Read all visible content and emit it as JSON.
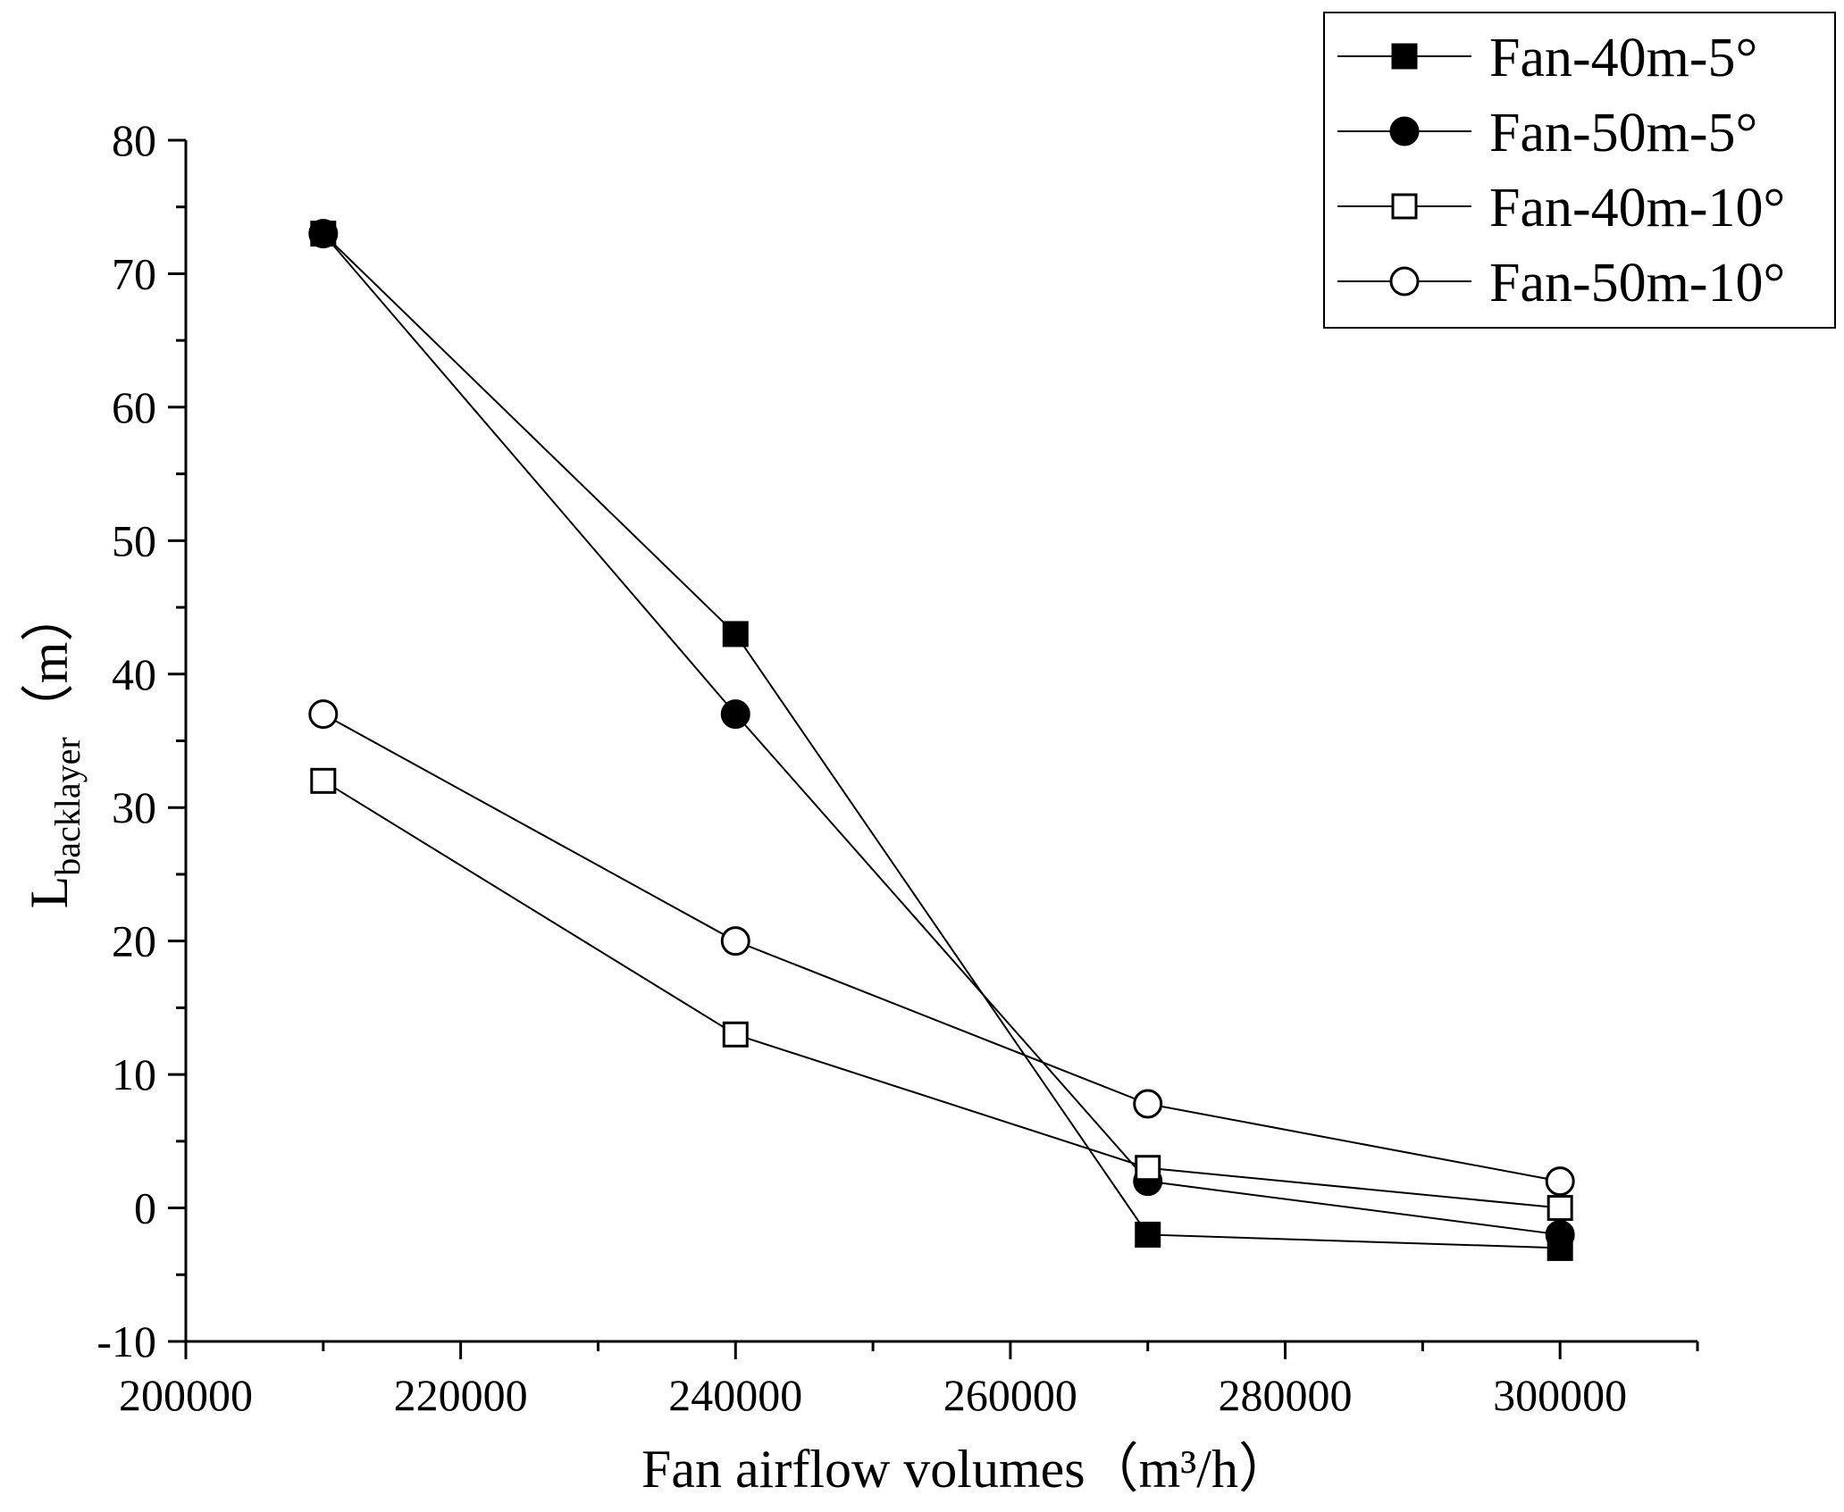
{
  "chart_data": {
    "type": "line",
    "title": "",
    "xlabel": "Fan airflow volumes（m³/h）",
    "ylabel_main": "L",
    "ylabel_sub": "backlayer",
    "ylabel_unit": "（m）",
    "xlim": [
      200000,
      310000
    ],
    "ylim": [
      -10,
      80
    ],
    "x_ticks": [
      200000,
      220000,
      240000,
      260000,
      280000,
      300000
    ],
    "x_tick_labels": [
      "200000",
      "220000",
      "240000",
      "260000",
      "280000",
      "300000"
    ],
    "y_ticks": [
      -10,
      0,
      10,
      20,
      30,
      40,
      50,
      60,
      70,
      80
    ],
    "y_tick_labels": [
      "-10",
      "0",
      "10",
      "20",
      "30",
      "40",
      "50",
      "60",
      "70",
      "80"
    ],
    "grid": false,
    "legend_position": "top-right",
    "x": [
      210000,
      240000,
      270000,
      300000
    ],
    "series": [
      {
        "name": "Fan-40m-5°",
        "marker": "square",
        "filled": true,
        "values": [
          73,
          43,
          -2,
          -3
        ]
      },
      {
        "name": "Fan-50m-5°",
        "marker": "circle",
        "filled": true,
        "values": [
          73,
          37,
          2,
          -2
        ]
      },
      {
        "name": "Fan-40m-10°",
        "marker": "square",
        "filled": false,
        "values": [
          32,
          13,
          3,
          0
        ]
      },
      {
        "name": "Fan-50m-10°",
        "marker": "circle",
        "filled": false,
        "values": [
          37,
          20,
          7.8,
          2
        ]
      }
    ],
    "colors": {
      "line": "#000000",
      "fill": "#000000",
      "open": "#ffffff"
    }
  }
}
